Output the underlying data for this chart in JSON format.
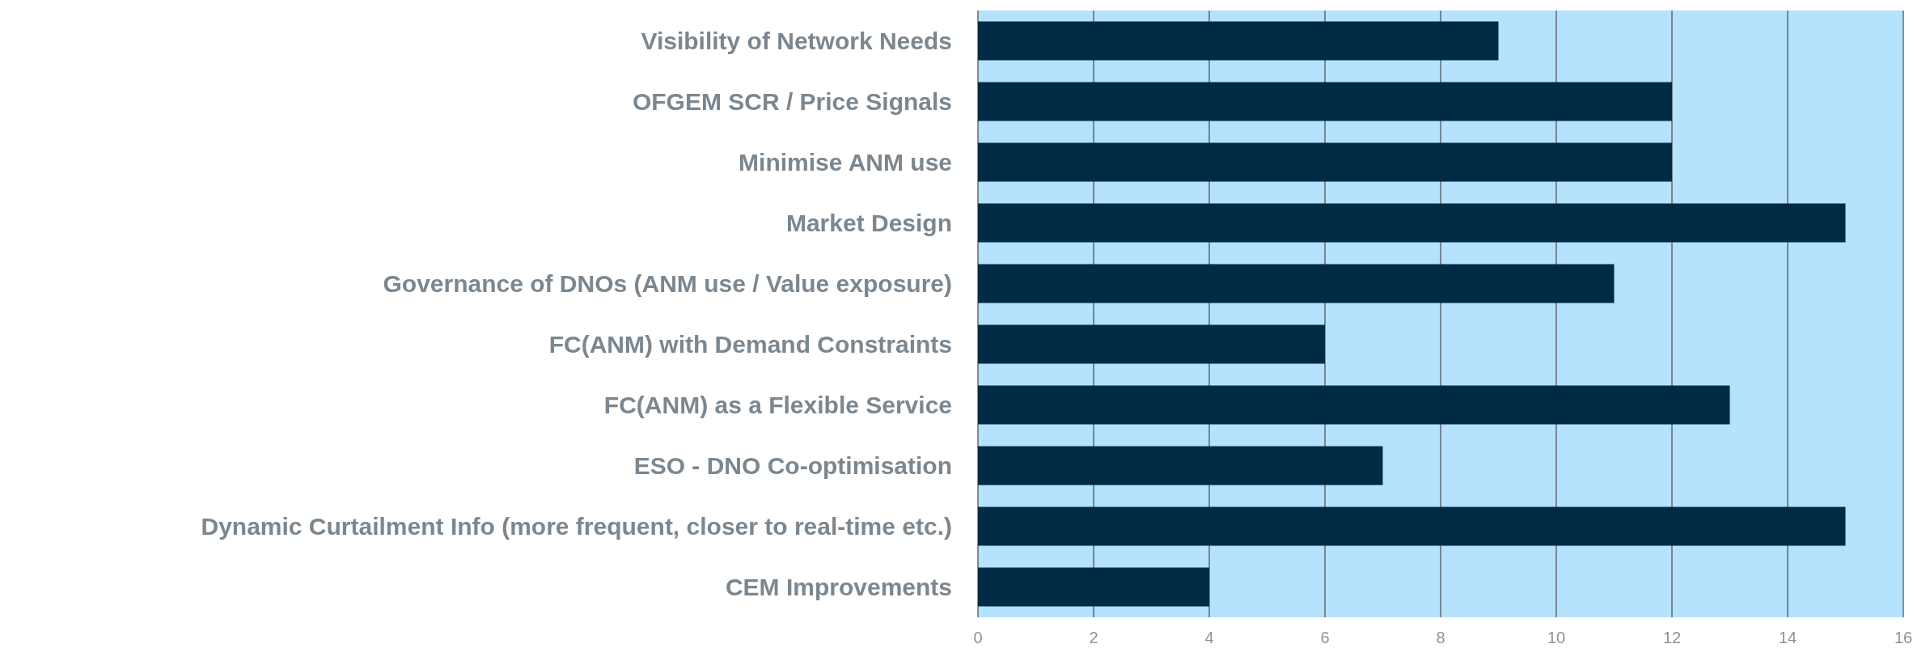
{
  "chart_data": {
    "type": "bar",
    "orientation": "horizontal",
    "categories": [
      "Visibility of Network Needs",
      "OFGEM SCR / Price Signals",
      "Minimise ANM use",
      "Market Design",
      "Governance of DNOs (ANM use / Value exposure)",
      "FC(ANM) with Demand Constraints",
      "FC(ANM) as a Flexible Service",
      "ESO - DNO Co-optimisation",
      "Dynamic Curtailment Info (more frequent, closer to real-time etc.)",
      "CEM Improvements"
    ],
    "values": [
      9,
      12,
      12,
      15,
      11,
      6,
      13,
      7,
      15,
      4
    ],
    "color": "#002b45",
    "xlim": [
      0,
      16
    ],
    "xticks": [
      0,
      2,
      4,
      6,
      8,
      10,
      12,
      14,
      16
    ],
    "grid": "x"
  }
}
